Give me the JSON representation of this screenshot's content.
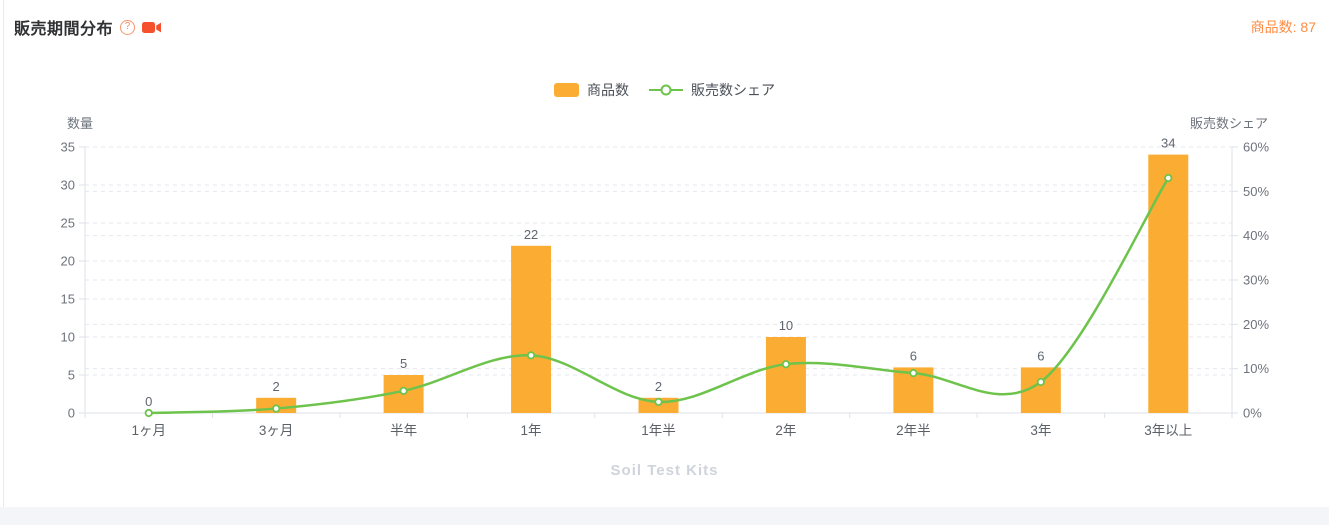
{
  "header": {
    "title": "販売期間分布",
    "help_glyph": "?",
    "stat": "商品数: 87"
  },
  "legend": {
    "items": [
      {
        "label": "商品数",
        "type": "bar",
        "color": "#FBAD33"
      },
      {
        "label": "販売数シェア",
        "type": "line",
        "color": "#6DC34B"
      }
    ]
  },
  "watermark": "Soil Test Kits",
  "chart_data": {
    "type": "bar",
    "note": "dual-axis combo chart: orange bars = product count (left axis), smooth green line with hollow markers = sales share % (right axis)",
    "categories": [
      "1ヶ月",
      "3ヶ月",
      "半年",
      "1年",
      "1年半",
      "2年",
      "2年半",
      "3年",
      "3年以上"
    ],
    "series": [
      {
        "name": "商品数",
        "type": "bar",
        "axis": "left",
        "color": "#FBAD33",
        "values": [
          0,
          2,
          5,
          22,
          2,
          10,
          6,
          6,
          34
        ],
        "labels": [
          "0",
          "2",
          "5",
          "22",
          "2",
          "10",
          "6",
          "6",
          "34"
        ]
      },
      {
        "name": "販売数シェア",
        "type": "line",
        "axis": "right",
        "color": "#6DC34B",
        "values_percent": [
          0,
          1,
          5,
          13,
          2.5,
          11,
          9,
          7,
          53
        ]
      }
    ],
    "left_axis": {
      "title": "数量",
      "min": 0,
      "max": 35,
      "step": 5,
      "ticks": [
        "0",
        "5",
        "10",
        "15",
        "20",
        "25",
        "30",
        "35"
      ]
    },
    "right_axis": {
      "title": "販売数シェア",
      "min": 0,
      "max": 60,
      "step": 10,
      "unit": "%",
      "ticks": [
        "0%",
        "10%",
        "20%",
        "30%",
        "40%",
        "50%",
        "60%"
      ]
    },
    "grid": {
      "style": "dashed",
      "color": "#E4E7EC"
    },
    "legend_position": "top-center"
  }
}
